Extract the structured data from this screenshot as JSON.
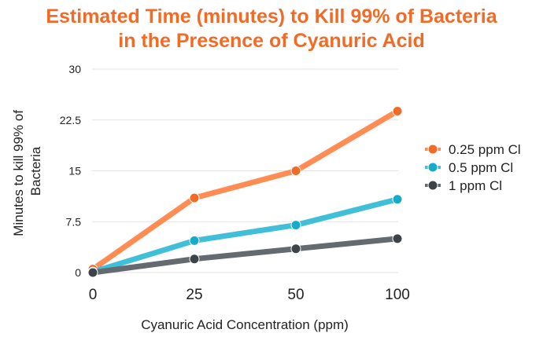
{
  "chart_data": {
    "type": "line",
    "title_lines": [
      "Estimated Time (minutes) to Kill 99% of Bacteria",
      "in the Presence of Cyanuric Acid"
    ],
    "xlabel": "Cyanuric Acid Concentration (ppm)",
    "ylabel_lines": [
      "Minutes to kill 99% of",
      "Bacteria"
    ],
    "categories": [
      "0",
      "25",
      "50",
      "100"
    ],
    "yticks": [
      "0",
      "7.5",
      "15",
      "22.5",
      "30"
    ],
    "ylim": [
      0,
      30
    ],
    "grid": "horizontal",
    "legend_position": "right",
    "series": [
      {
        "name": "0.25 ppm Cl",
        "values": [
          0.5,
          11,
          15,
          23.8
        ],
        "color": "#ff8c52",
        "marker_color": "#f26b26"
      },
      {
        "name": "0.5 ppm Cl",
        "values": [
          0.1,
          4.7,
          7,
          10.8
        ],
        "color": "#42bfd8",
        "marker_color": "#16abc8"
      },
      {
        "name": "1 ppm Cl",
        "values": [
          0,
          2,
          3.5,
          5
        ],
        "color": "#636a70",
        "marker_color": "#3c4349"
      }
    ]
  }
}
